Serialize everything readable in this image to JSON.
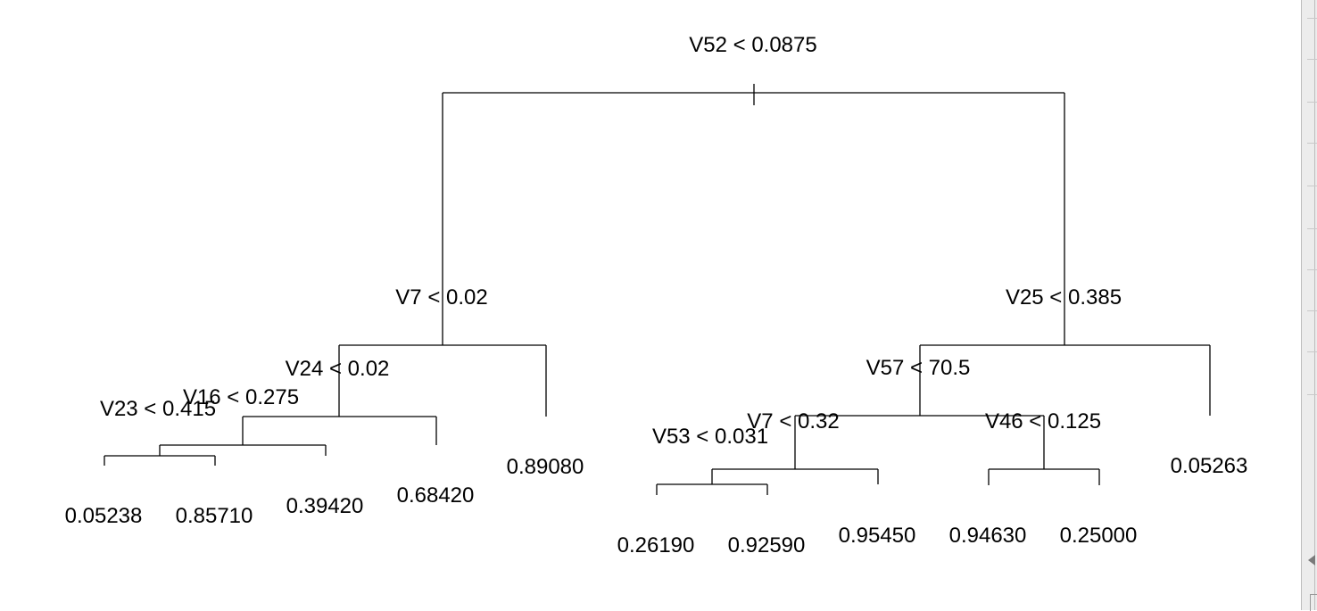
{
  "tree": {
    "root_split": "V52 < 0.0875",
    "splits": [
      {
        "id": "v52",
        "text": "V52 < 0.0875"
      },
      {
        "id": "v7a",
        "text": "V7 < 0.02"
      },
      {
        "id": "v25",
        "text": "V25 < 0.385"
      },
      {
        "id": "v24",
        "text": "V24 < 0.02"
      },
      {
        "id": "v57",
        "text": "V57 < 70.5"
      },
      {
        "id": "v16",
        "text": "V16 < 0.275"
      },
      {
        "id": "v23",
        "text": "V23 < 0.415"
      },
      {
        "id": "v7b",
        "text": "V7 < 0.32"
      },
      {
        "id": "v46",
        "text": "V46 < 0.125"
      },
      {
        "id": "v53",
        "text": "V53 < 0.031"
      }
    ],
    "leaves": [
      {
        "id": "l1",
        "value": "0.05238"
      },
      {
        "id": "l2",
        "value": "0.85710"
      },
      {
        "id": "l3",
        "value": "0.39420"
      },
      {
        "id": "l4",
        "value": "0.68420"
      },
      {
        "id": "l5",
        "value": "0.89080"
      },
      {
        "id": "l6",
        "value": "0.26190"
      },
      {
        "id": "l7",
        "value": "0.92590"
      },
      {
        "id": "l8",
        "value": "0.95450"
      },
      {
        "id": "l9",
        "value": "0.94630"
      },
      {
        "id": "l10",
        "value": "0.25000"
      },
      {
        "id": "l11",
        "value": "0.05263"
      }
    ]
  }
}
